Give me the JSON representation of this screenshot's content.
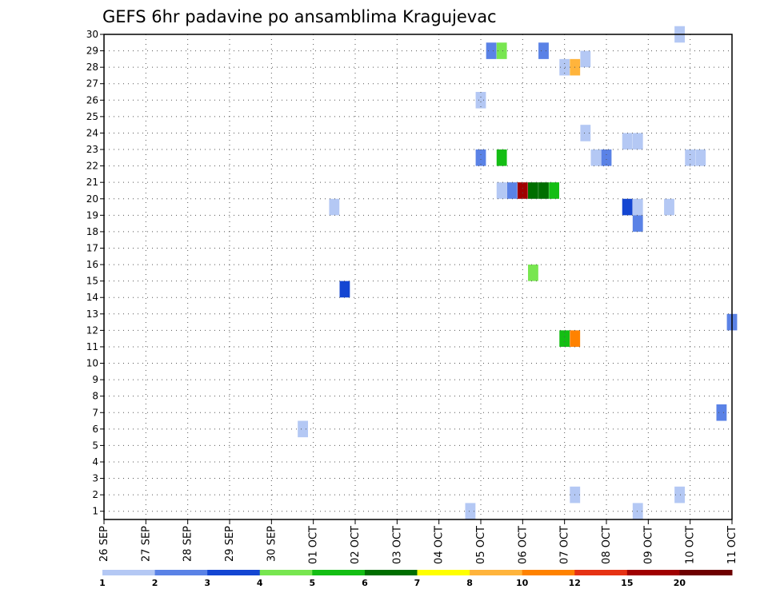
{
  "chart_data": {
    "type": "heatmap",
    "title": "GEFS 6hr padavine po ansamblima Kragujevac",
    "x_ticks": [
      "26 SEP",
      "27 SEP",
      "28 SEP",
      "29 SEP",
      "30 SEP",
      "01 OCT",
      "02 OCT",
      "03 OCT",
      "04 OCT",
      "05 OCT",
      "06 OCT",
      "07 OCT",
      "08 OCT",
      "09 OCT",
      "10 OCT",
      "11 OCT"
    ],
    "x_range": [
      "2025-09-26 00:00",
      "2025-10-11 00:00"
    ],
    "x_step": "6hr",
    "y_ticks": [
      1,
      2,
      3,
      4,
      5,
      6,
      7,
      8,
      9,
      10,
      11,
      12,
      13,
      14,
      15,
      16,
      17,
      18,
      19,
      20,
      21,
      22,
      23,
      24,
      25,
      26,
      27,
      28,
      29,
      30
    ],
    "ylim": [
      0.5,
      30
    ],
    "grid": true,
    "color_scale": {
      "boundaries": [
        "1",
        "2",
        "3",
        "4",
        "5",
        "6",
        "7",
        "8",
        "10",
        "12",
        "15",
        "20"
      ],
      "colors": [
        "#b4c8f4",
        "#5a82e6",
        "#1446d2",
        "#78e650",
        "#14be14",
        "#006e00",
        "#ffff00",
        "#ffb43c",
        "#ff8200",
        "#e63214",
        "#a00000",
        "#6e0000"
      ]
    },
    "cells": [
      {
        "time": "2025-09-30 18:00",
        "member": 6,
        "level": 1
      },
      {
        "time": "2025-10-01 12:00",
        "member": 19.5,
        "level": 1
      },
      {
        "time": "2025-10-01 18:00",
        "member": 14.5,
        "level": 3
      },
      {
        "time": "2025-10-04 18:00",
        "member": 1,
        "level": 1
      },
      {
        "time": "2025-10-05 00:00",
        "member": 26,
        "level": 1
      },
      {
        "time": "2025-10-05 00:00",
        "member": 22.5,
        "level": 2
      },
      {
        "time": "2025-10-05 06:00",
        "member": 29,
        "level": 2
      },
      {
        "time": "2025-10-05 12:00",
        "member": 29,
        "level": 4
      },
      {
        "time": "2025-10-05 12:00",
        "member": 22.5,
        "level": 5
      },
      {
        "time": "2025-10-05 12:00",
        "member": 20.5,
        "level": 1
      },
      {
        "time": "2025-10-05 18:00",
        "member": 20.5,
        "level": 2
      },
      {
        "time": "2025-10-06 00:00",
        "member": 20.5,
        "level": 11
      },
      {
        "time": "2025-10-06 06:00",
        "member": 20.5,
        "level": 6
      },
      {
        "time": "2025-10-06 06:00",
        "member": 15.5,
        "level": 4
      },
      {
        "time": "2025-10-06 12:00",
        "member": 20.5,
        "level": 6
      },
      {
        "time": "2025-10-06 12:00",
        "member": 29,
        "level": 2
      },
      {
        "time": "2025-10-06 18:00",
        "member": 20.5,
        "level": 5
      },
      {
        "time": "2025-10-07 00:00",
        "member": 28,
        "level": 1
      },
      {
        "time": "2025-10-07 00:00",
        "member": 11.5,
        "level": 5
      },
      {
        "time": "2025-10-07 06:00",
        "member": 28,
        "level": 8
      },
      {
        "time": "2025-10-07 06:00",
        "member": 11.5,
        "level": 9
      },
      {
        "time": "2025-10-07 06:00",
        "member": 2,
        "level": 1
      },
      {
        "time": "2025-10-07 12:00",
        "member": 28.5,
        "level": 1
      },
      {
        "time": "2025-10-07 12:00",
        "member": 24,
        "level": 1
      },
      {
        "time": "2025-10-07 18:00",
        "member": 22.5,
        "level": 1
      },
      {
        "time": "2025-10-08 00:00",
        "member": 22.5,
        "level": 2
      },
      {
        "time": "2025-10-08 12:00",
        "member": 23.5,
        "level": 1
      },
      {
        "time": "2025-10-08 12:00",
        "member": 19.5,
        "level": 3
      },
      {
        "time": "2025-10-08 18:00",
        "member": 23.5,
        "level": 1
      },
      {
        "time": "2025-10-08 18:00",
        "member": 19.5,
        "level": 1
      },
      {
        "time": "2025-10-08 18:00",
        "member": 18.5,
        "level": 2
      },
      {
        "time": "2025-10-08 18:00",
        "member": 1,
        "level": 1
      },
      {
        "time": "2025-10-09 12:00",
        "member": 19.5,
        "level": 1
      },
      {
        "time": "2025-10-09 18:00",
        "member": 30,
        "level": 1
      },
      {
        "time": "2025-10-09 18:00",
        "member": 2,
        "level": 1
      },
      {
        "time": "2025-10-10 00:00",
        "member": 22.5,
        "level": 1
      },
      {
        "time": "2025-10-10 06:00",
        "member": 22.5,
        "level": 1
      },
      {
        "time": "2025-10-10 18:00",
        "member": 7,
        "level": 2
      },
      {
        "time": "2025-10-11 00:00",
        "member": 12.5,
        "level": 2
      }
    ]
  }
}
